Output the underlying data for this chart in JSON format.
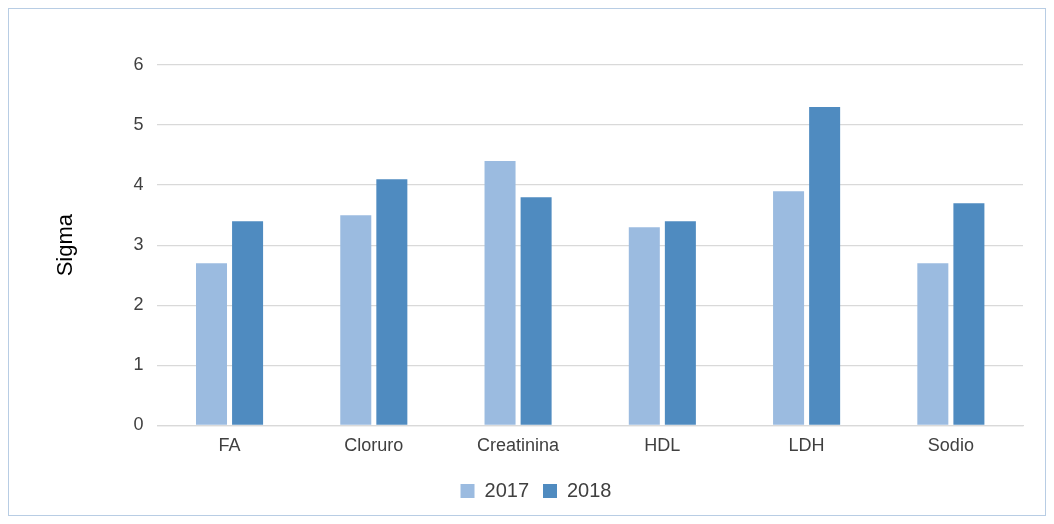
{
  "chart_data": {
    "type": "bar",
    "ylabel": "Sigma",
    "categories": [
      "FA",
      "Cloruro",
      "Creatinina",
      "HDL",
      "LDH",
      "Sodio"
    ],
    "series": [
      {
        "name": "2017",
        "color": "#9bbbe0",
        "values": [
          2.7,
          3.5,
          4.4,
          3.3,
          3.9,
          2.7
        ]
      },
      {
        "name": "2018",
        "color": "#4f8bc0",
        "values": [
          3.4,
          4.1,
          3.8,
          3.4,
          5.3,
          3.7
        ]
      }
    ],
    "ylim": [
      0,
      6
    ],
    "yticks": [
      0,
      1,
      2,
      3,
      4,
      5,
      6
    ],
    "grid": "y",
    "legend": "bottom"
  }
}
